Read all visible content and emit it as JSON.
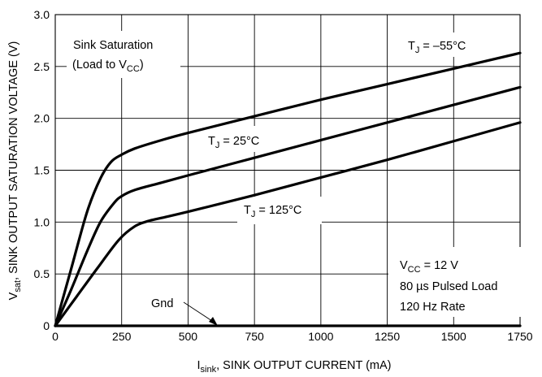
{
  "chart_data": {
    "type": "line",
    "xlabel": {
      "main": "I",
      "sub": "sink",
      "rest": ", SINK OUTPUT CURRENT (mA)"
    },
    "ylabel": {
      "main": "V",
      "sub": "sat",
      "rest": ", SINK OUTPUT SATURATION VOLTAGE (V)"
    },
    "xlim": [
      0,
      1750
    ],
    "ylim": [
      0,
      3.0
    ],
    "xticks": [
      0,
      250,
      500,
      750,
      1000,
      1250,
      1500,
      1750
    ],
    "yticks": [
      0,
      0.5,
      1.0,
      1.5,
      2.0,
      2.5,
      3.0
    ],
    "xtick_labels": [
      "0",
      "250",
      "500",
      "750",
      "1000",
      "1250",
      "1500",
      "1750"
    ],
    "ytick_labels": [
      "0",
      "0.5",
      "1.0",
      "1.5",
      "2.0",
      "2.5",
      "3.0"
    ],
    "grid": true,
    "series": [
      {
        "name": "TJ = −55°C",
        "x": [
          0,
          60,
          120,
          170,
          210,
          250,
          300,
          400,
          500,
          750,
          1000,
          1250,
          1500,
          1750
        ],
        "y": [
          0,
          0.55,
          1.1,
          1.42,
          1.58,
          1.65,
          1.71,
          1.79,
          1.86,
          2.02,
          2.18,
          2.33,
          2.48,
          2.63
        ]
      },
      {
        "name": "TJ = 25°C",
        "x": [
          0,
          60,
          120,
          170,
          220,
          250,
          300,
          400,
          500,
          750,
          1000,
          1250,
          1500,
          1750
        ],
        "y": [
          0,
          0.35,
          0.72,
          1.0,
          1.18,
          1.25,
          1.31,
          1.38,
          1.45,
          1.62,
          1.79,
          1.96,
          2.13,
          2.3
        ]
      },
      {
        "name": "TJ = 125°C",
        "x": [
          0,
          80,
          160,
          240,
          300,
          350,
          400,
          500,
          750,
          1000,
          1250,
          1500,
          1750
        ],
        "y": [
          0,
          0.28,
          0.56,
          0.83,
          0.96,
          1.01,
          1.04,
          1.1,
          1.26,
          1.43,
          1.6,
          1.78,
          1.96
        ]
      },
      {
        "name": "Gnd",
        "x": [
          0,
          1750
        ],
        "y": [
          0,
          0
        ]
      }
    ],
    "annotations": {
      "sink_line1": "Sink Saturation",
      "sink_line2_a": "(Load to V",
      "sink_line2_sub": "CC",
      "sink_line2_b": ")",
      "tj55_main": "T",
      "tj55_sub": "J",
      "tj55_rest": " = –55°C",
      "tj25_main": "T",
      "tj25_sub": "J",
      "tj25_rest": " = 25°C",
      "tj125_main": "T",
      "tj125_sub": "J",
      "tj125_rest": " = 125°C",
      "vcc_main": "V",
      "vcc_sub": "CC",
      "vcc_rest": " = 12 V",
      "pulse": "80 µs Pulsed Load",
      "rate": "120 Hz Rate",
      "gnd": "Gnd"
    }
  }
}
